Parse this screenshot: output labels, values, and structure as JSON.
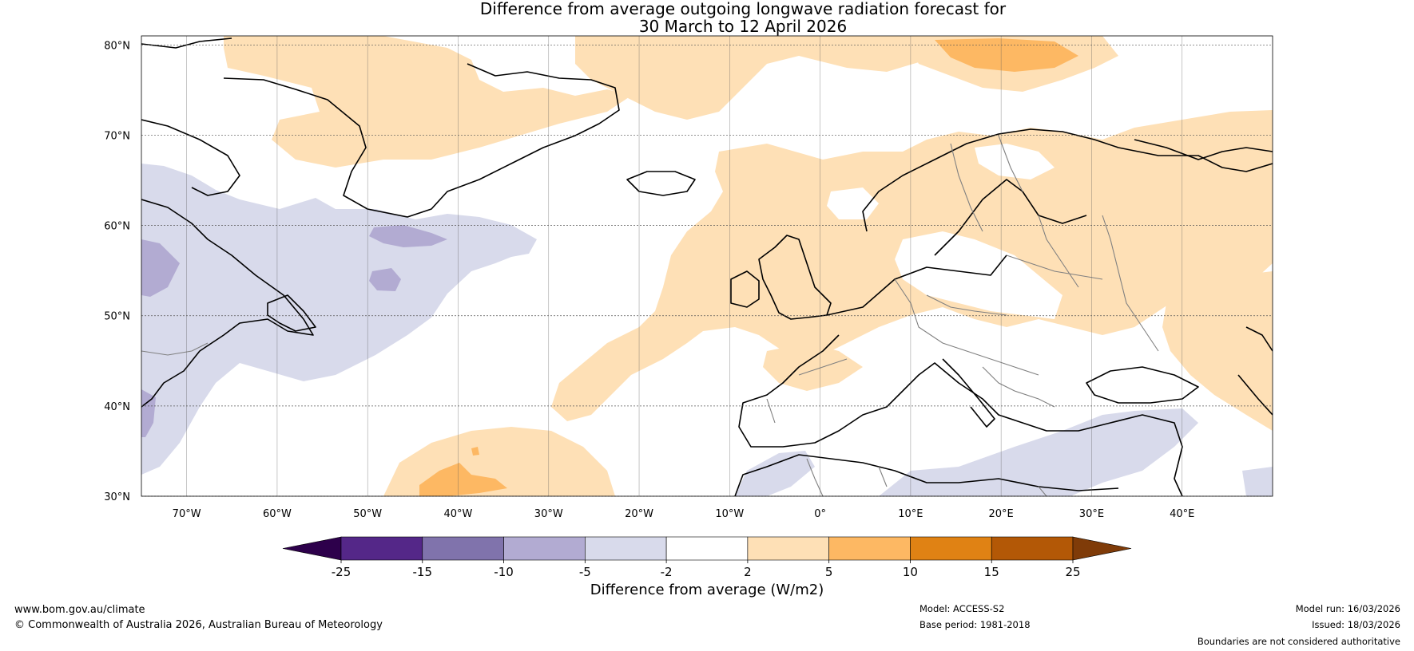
{
  "title": {
    "line1": "Difference from average outgoing longwave radiation forecast for",
    "line2": "30 March to 12 April 2026"
  },
  "map": {
    "lat_labels": [
      "80°N",
      "70°N",
      "60°N",
      "50°N",
      "40°N",
      "30°N"
    ],
    "lon_labels": [
      "70°W",
      "60°W",
      "50°W",
      "40°W",
      "30°W",
      "20°W",
      "10°W",
      "0°",
      "10°E",
      "20°E",
      "30°E",
      "40°E"
    ],
    "lat_values": [
      80,
      70,
      60,
      50,
      40,
      30
    ],
    "lon_values": [
      -70,
      -60,
      -50,
      -40,
      -30,
      -20,
      -10,
      0,
      10,
      20,
      30,
      40
    ],
    "extent": {
      "lon_min": -75,
      "lon_max": 50,
      "lat_min": 30,
      "lat_max": 81
    }
  },
  "legend": {
    "label": "Difference from average (W/m2)",
    "ticks": [
      "-25",
      "-15",
      "-10",
      "-5",
      "-2",
      "2",
      "5",
      "10",
      "15",
      "25"
    ],
    "under_color": "#2d004b",
    "over_color": "#7f3b08",
    "bins": [
      {
        "from": -25,
        "to": -15,
        "color": "#542788"
      },
      {
        "from": -15,
        "to": -10,
        "color": "#8073ac"
      },
      {
        "from": -10,
        "to": -5,
        "color": "#b2abd2"
      },
      {
        "from": -5,
        "to": -2,
        "color": "#d8daeb"
      },
      {
        "from": -2,
        "to": 2,
        "color": "#ffffff"
      },
      {
        "from": 2,
        "to": 5,
        "color": "#fee0b6"
      },
      {
        "from": 5,
        "to": 10,
        "color": "#fdb863"
      },
      {
        "from": 10,
        "to": 15,
        "color": "#e08214"
      },
      {
        "from": 15,
        "to": 25,
        "color": "#b35806"
      }
    ]
  },
  "footer": {
    "website": "www.bom.gov.au/climate",
    "copyright": "© Commonwealth of Australia 2026, Australian Bureau of Meteorology",
    "model": "Model: ACCESS-S2",
    "base_period": "Base period: 1981-2018",
    "model_run": "Model run: 16/03/2026",
    "issued": "Issued: 18/03/2026",
    "disclaimer": "Boundaries are not considered authoritative"
  }
}
